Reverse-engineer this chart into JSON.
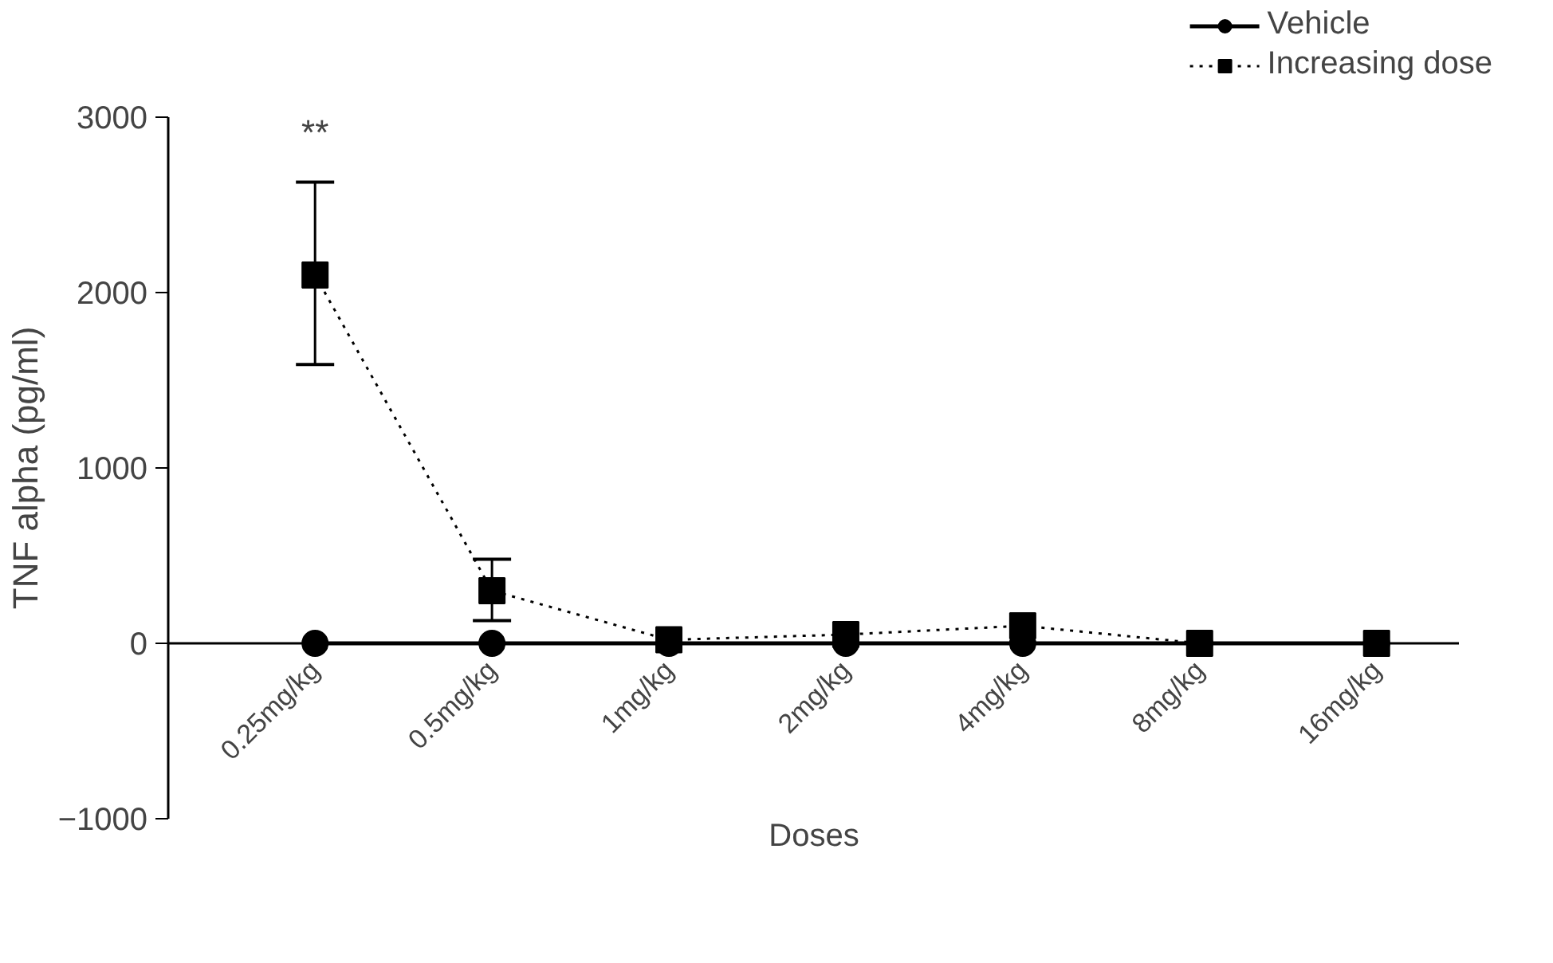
{
  "chart_data": {
    "type": "line",
    "xlabel": "Doses",
    "ylabel": "TNF alpha (pg/ml)",
    "categories": [
      "0.25mg/kg",
      "0.5mg/kg",
      "1mg/kg",
      "2mg/kg",
      "4mg/kg",
      "8mg/kg",
      "16mg/kg"
    ],
    "series": [
      {
        "name": "Vehicle",
        "color": "#000000",
        "marker": "circle",
        "line_style": "solid",
        "values": [
          0,
          0,
          0,
          0,
          0,
          0,
          0
        ]
      },
      {
        "name": "Increasing dose",
        "color": "#000000",
        "marker": "square",
        "line_style": "dotted",
        "values": [
          2100,
          300,
          20,
          50,
          100,
          0,
          0
        ],
        "errors": [
          [
            1590,
            2630
          ],
          [
            130,
            480
          ],
          null,
          null,
          null,
          null,
          null
        ]
      }
    ],
    "ylim": [
      -1000,
      3000
    ],
    "yticks": [
      -1000,
      0,
      1000,
      2000,
      3000
    ],
    "grid": false,
    "legend": "top right",
    "annotations": [
      "**"
    ]
  }
}
